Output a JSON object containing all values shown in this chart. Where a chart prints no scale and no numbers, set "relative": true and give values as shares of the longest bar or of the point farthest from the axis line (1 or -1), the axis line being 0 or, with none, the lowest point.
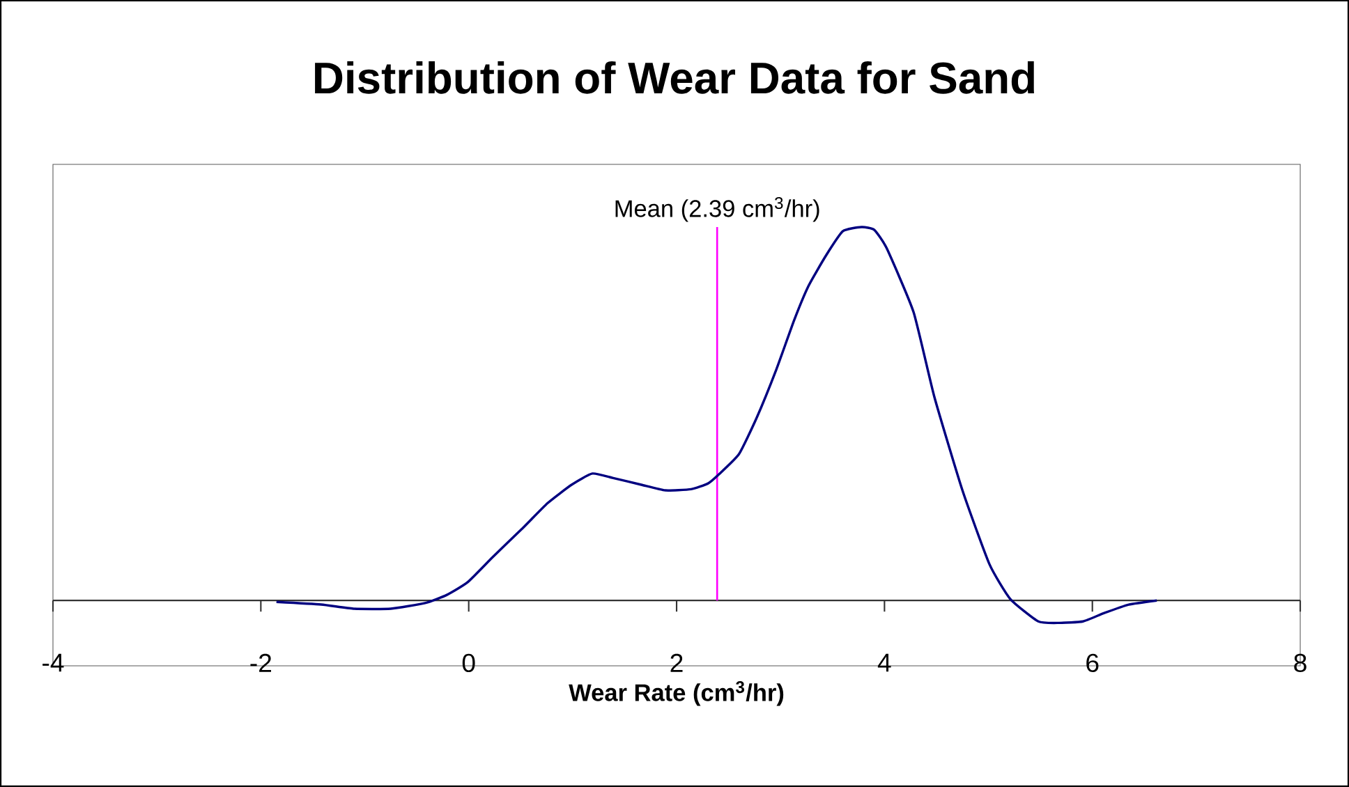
{
  "chart_data": {
    "type": "line",
    "title": "Distribution of Wear Data for Sand",
    "xlabel": "Wear Rate (cm$^{3}$/hr)",
    "relative": true,
    "color": "#000080",
    "x": [
      -1.85,
      -1.42,
      -1.11,
      -0.75,
      -0.42,
      -0.21,
      -0.01,
      0.23,
      0.52,
      0.76,
      0.99,
      1.19,
      1.39,
      1.66,
      1.89,
      2.14,
      2.3,
      2.4,
      2.6,
      2.77,
      2.96,
      3.13,
      3.27,
      3.44,
      3.6,
      3.78,
      3.9,
      4.02,
      4.28,
      4.48,
      4.75,
      5.01,
      5.21,
      5.48,
      5.68,
      5.91,
      6.11,
      6.35,
      6.62
    ],
    "values": [
      -0.004,
      -0.011,
      -0.022,
      -0.022,
      -0.007,
      0.015,
      0.049,
      0.116,
      0.194,
      0.261,
      0.31,
      0.34,
      0.328,
      0.31,
      0.295,
      0.298,
      0.313,
      0.336,
      0.392,
      0.489,
      0.619,
      0.75,
      0.843,
      0.925,
      0.989,
      1.0,
      0.993,
      0.944,
      0.772,
      0.545,
      0.295,
      0.097,
      0.004,
      -0.056,
      -0.06,
      -0.056,
      -0.034,
      -0.011,
      0
    ],
    "xlim": [
      -4,
      8
    ],
    "xticks": [
      -4,
      -2,
      0,
      2,
      4,
      6,
      8
    ],
    "ref_lines": [
      {
        "axis": "x",
        "value": 2.39,
        "label": "Mean (2.39 cm$^{3}$/hr)",
        "color": "#ff00ff"
      }
    ]
  }
}
